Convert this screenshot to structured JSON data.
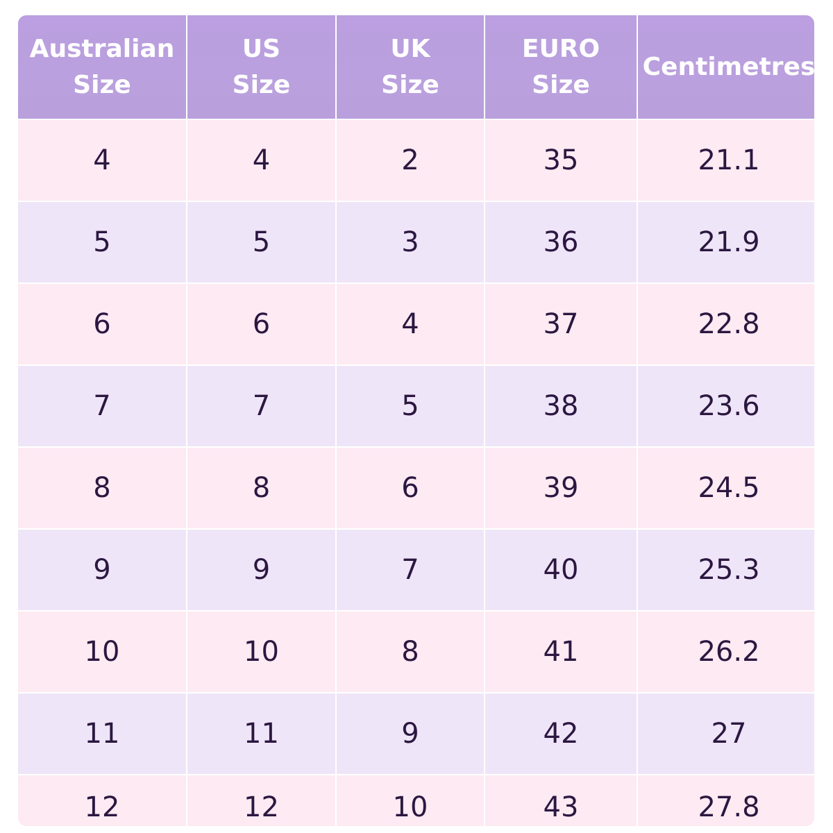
{
  "table": {
    "header": [
      "Australian Size",
      "US Size",
      "UK Size",
      "EURO Size",
      "Centimetres"
    ],
    "rows": [
      [
        4,
        4,
        2,
        35,
        21.1
      ],
      [
        5,
        5,
        3,
        36,
        21.9
      ],
      [
        6,
        6,
        4,
        37,
        22.8
      ],
      [
        7,
        7,
        5,
        38,
        23.6
      ],
      [
        8,
        8,
        6,
        39,
        24.5
      ],
      [
        9,
        9,
        7,
        40,
        25.3
      ],
      [
        10,
        10,
        8,
        41,
        26.2
      ],
      [
        11,
        11,
        9,
        42,
        27
      ],
      [
        12,
        12,
        10,
        43,
        27.8
      ]
    ]
  }
}
